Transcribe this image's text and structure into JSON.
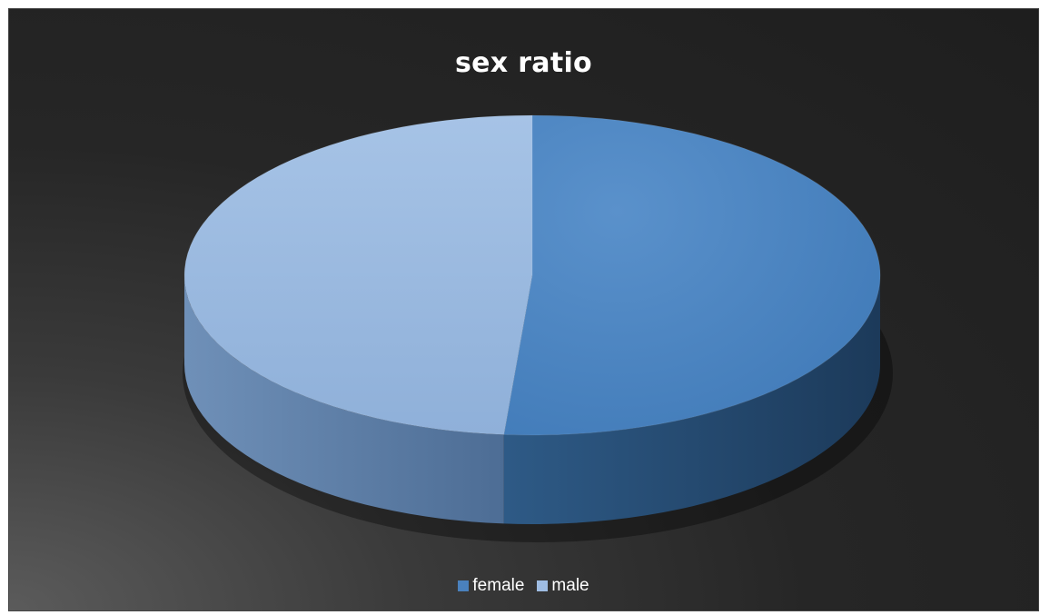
{
  "chart_data": {
    "type": "pie",
    "title": "sex ratio",
    "categories": [
      "female",
      "male"
    ],
    "values": [
      51.3,
      48.7
    ],
    "colors": {
      "female": "#4a81bd",
      "male": "#9fbde3"
    },
    "legend_position": "bottom",
    "style": "3d"
  },
  "legend": {
    "items": [
      {
        "label": "female",
        "color": "#4a81bd"
      },
      {
        "label": "male",
        "color": "#9fbde3"
      }
    ]
  }
}
